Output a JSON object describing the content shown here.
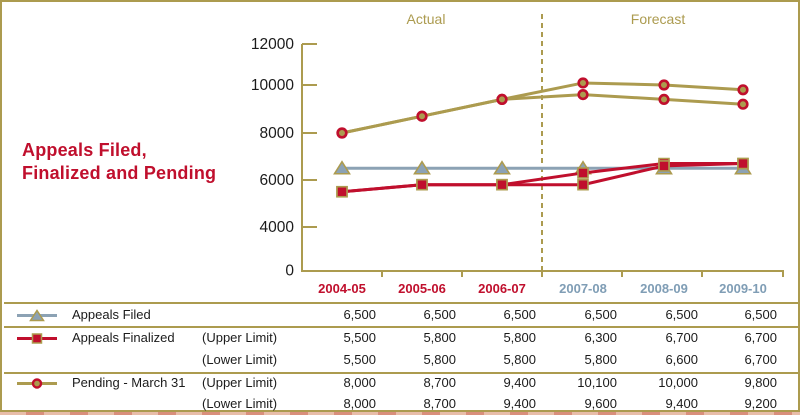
{
  "title": {
    "line1": "Appeals Filed,",
    "line2": "Finalized and Pending"
  },
  "colors": {
    "olive": "#AC9B4F",
    "crimson": "#C00F2D",
    "bluegray": "#8CA2B4",
    "steel": "#7F9DB5",
    "text": "#1B1B1B",
    "background": "#FFFFFF",
    "bottom_strip": "#E8BDA9"
  },
  "chart_data": {
    "type": "line",
    "title": "Appeals Filed, Finalized and Pending",
    "categories": [
      "2004-05",
      "2005-06",
      "2006-07",
      "2007-08",
      "2008-09",
      "2009-10"
    ],
    "actual_count": 3,
    "zone_labels": {
      "actual": "Actual",
      "forecast": "Forecast"
    },
    "divider_after_category": "2006-07",
    "y_ticks": [
      12000,
      10000,
      8000,
      6000,
      4000,
      0
    ],
    "ylim": [
      0,
      12000
    ],
    "y_axis_break_below": 4000,
    "grid": false,
    "legend_position": "table-below",
    "series": [
      {
        "id": "appeals-filed",
        "name": "Appeals Filed",
        "marker": "triangle",
        "line_color": "bluegray",
        "marker_fill": "bluegray",
        "marker_stroke": "olive",
        "lines": [
          [
            6500,
            6500,
            6500,
            6500,
            6500,
            6500
          ]
        ]
      },
      {
        "id": "appeals-finalized",
        "name": "Appeals Finalized",
        "marker": "square",
        "line_color": "crimson",
        "marker_fill": "crimson",
        "marker_stroke": "olive",
        "lines": [
          [
            5500,
            5800,
            5800,
            6300,
            6700,
            6700
          ],
          [
            5500,
            5800,
            5800,
            5800,
            6600,
            6700
          ]
        ]
      },
      {
        "id": "pending",
        "name": "Pending - March 31",
        "marker": "circle",
        "line_color": "olive",
        "marker_fill": "olive",
        "marker_stroke": "crimson",
        "lines": [
          [
            8000,
            8700,
            9400,
            10100,
            10000,
            9800
          ],
          [
            8000,
            8700,
            9400,
            9600,
            9400,
            9200
          ]
        ]
      }
    ]
  },
  "table": {
    "header_years": [
      "2004-05",
      "2005-06",
      "2006-07",
      "2007-08",
      "2008-09",
      "2009-10"
    ],
    "actual_count": 3,
    "rows": [
      {
        "series": "appeals-filed",
        "marker": "triangle",
        "name": "Appeals Filed",
        "limit": "",
        "values": [
          "6,500",
          "6,500",
          "6,500",
          "6,500",
          "6,500",
          "6,500"
        ]
      },
      {
        "series": "appeals-finalized",
        "marker": "square",
        "name": "Appeals Finalized",
        "limit": "(Upper Limit)",
        "values": [
          "5,500",
          "5,800",
          "5,800",
          "6,300",
          "6,700",
          "6,700"
        ]
      },
      {
        "series": "appeals-finalized",
        "marker": "",
        "name": "",
        "limit": "(Lower Limit)",
        "values": [
          "5,500",
          "5,800",
          "5,800",
          "5,800",
          "6,600",
          "6,700"
        ]
      },
      {
        "series": "pending",
        "marker": "circle",
        "name": "Pending - March 31",
        "limit": "(Upper Limit)",
        "values": [
          "8,000",
          "8,700",
          "9,400",
          "10,100",
          "10,000",
          "9,800"
        ]
      },
      {
        "series": "pending",
        "marker": "",
        "name": "",
        "limit": "(Lower Limit)",
        "values": [
          "8,000",
          "8,700",
          "9,400",
          "9,600",
          "9,400",
          "9,200"
        ]
      }
    ]
  }
}
